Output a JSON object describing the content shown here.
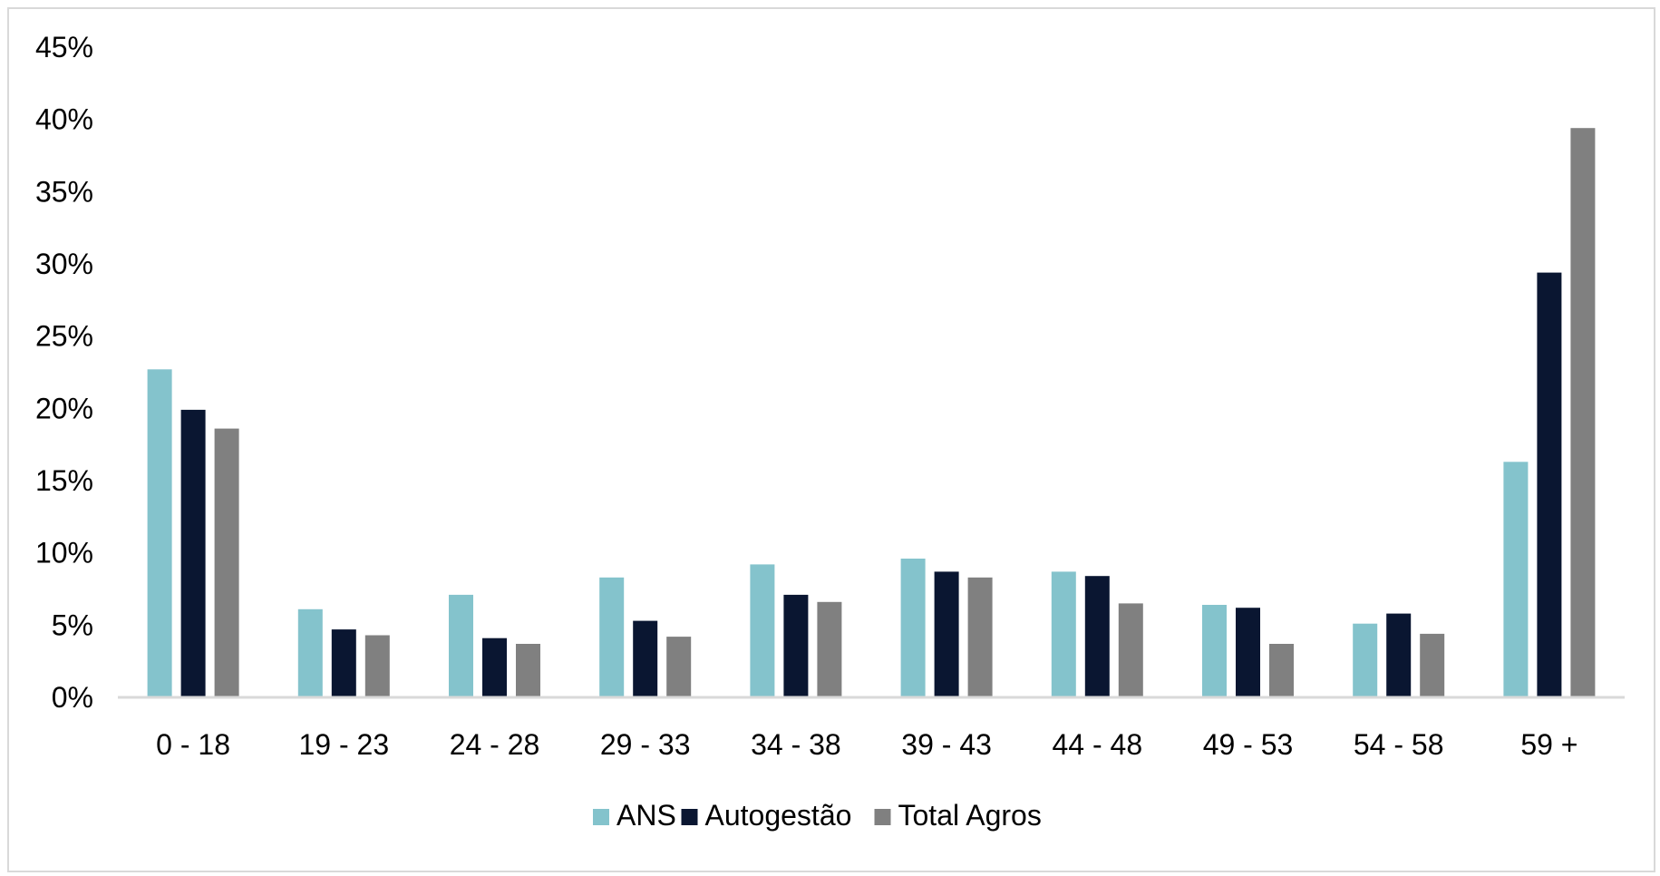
{
  "chart_data": {
    "type": "bar",
    "title": "",
    "xlabel": "",
    "ylabel": "",
    "categories": [
      "0 - 18",
      "19 - 23",
      "24 - 28",
      "29 - 33",
      "34 - 38",
      "39 - 43",
      "44 - 48",
      "49 - 53",
      "54 - 58",
      "59 +"
    ],
    "ylim": [
      0,
      45
    ],
    "yticks": [
      0,
      5,
      10,
      15,
      20,
      25,
      30,
      35,
      40,
      45
    ],
    "ytick_labels": [
      "0%",
      "5%",
      "10%",
      "15%",
      "20%",
      "25%",
      "30%",
      "35%",
      "40%",
      "45%"
    ],
    "grid": false,
    "legend_position": "bottom",
    "series": [
      {
        "name": "ANS",
        "color": "#84c3cc",
        "values": [
          22.7,
          6.1,
          7.1,
          8.3,
          9.2,
          9.6,
          8.7,
          6.4,
          5.1,
          16.3
        ]
      },
      {
        "name": "Autogestão",
        "color": "#0a1631",
        "values": [
          19.9,
          4.7,
          4.1,
          5.3,
          7.1,
          8.7,
          8.4,
          6.2,
          5.8,
          29.4
        ]
      },
      {
        "name": "Total Agros",
        "color": "#808080",
        "values": [
          18.6,
          4.3,
          3.7,
          4.2,
          6.6,
          8.3,
          6.5,
          3.7,
          4.4,
          39.4
        ]
      }
    ]
  }
}
